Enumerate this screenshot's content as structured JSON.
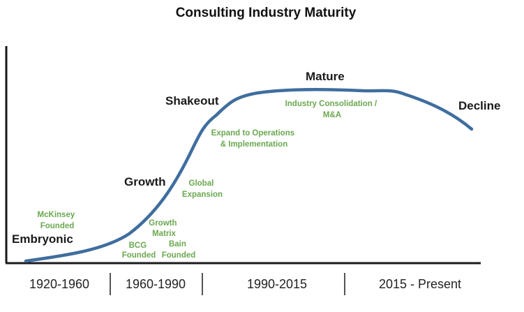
{
  "title": "Consulting Industry Maturity",
  "stages": {
    "embryonic": "Embryonic",
    "growth": "Growth",
    "shakeout": "Shakeout",
    "mature": "Mature",
    "decline": "Decline"
  },
  "milestones": {
    "mckinsey": [
      "McKinsey",
      "Founded"
    ],
    "bcg": [
      "BCG",
      "Founded"
    ],
    "growth_matrix": [
      "Growth",
      "Matrix"
    ],
    "bain": [
      "Bain",
      "Founded"
    ],
    "global_expansion": [
      "Global",
      "Expansion"
    ],
    "expand_operations": [
      "Expand to Operations",
      "& Implementation"
    ],
    "industry_consolidation": [
      "Industry Consolidation /",
      "M&A"
    ]
  },
  "periods": [
    "1920-1960",
    "1960-1990",
    "1990-2015",
    "2015 - Present"
  ],
  "colors": {
    "curve": "#3f6e9e",
    "milestone_text": "#6aa84f",
    "axis": "#1a1a1a"
  }
}
